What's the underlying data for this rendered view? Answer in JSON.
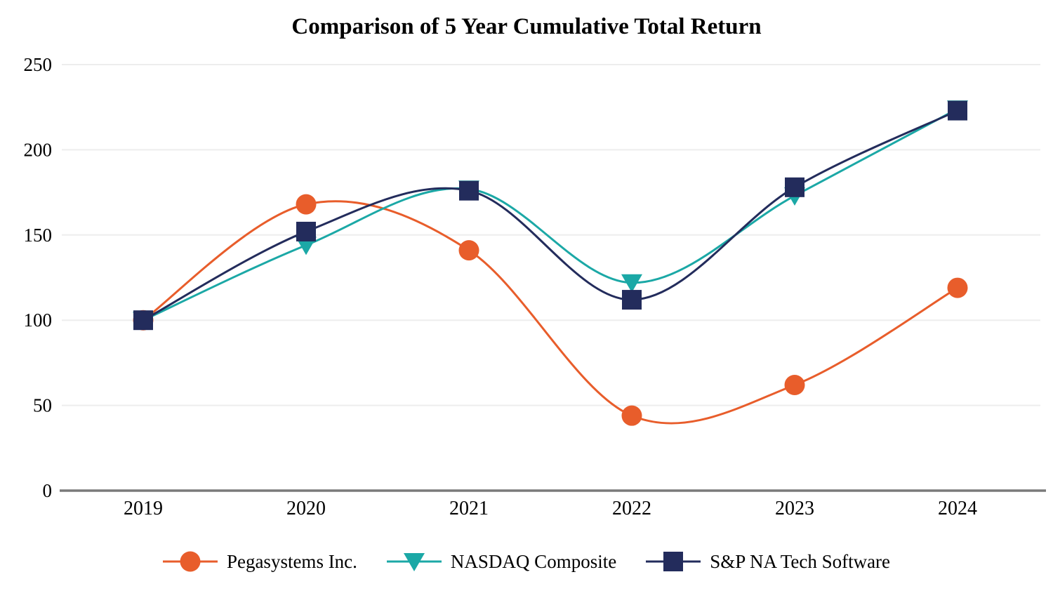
{
  "chart_data": {
    "type": "line",
    "title": "Comparison of 5 Year Cumulative Total Return",
    "categories": [
      "2019",
      "2020",
      "2021",
      "2022",
      "2023",
      "2024"
    ],
    "series": [
      {
        "name": "Pegasystems Inc.",
        "marker": "circle",
        "color": "#E85D2B",
        "values": [
          100,
          168,
          141,
          44,
          62,
          119
        ]
      },
      {
        "name": "NASDAQ Composite",
        "marker": "triangle-down",
        "color": "#1BA8A6",
        "values": [
          100,
          144,
          177,
          122,
          173,
          224
        ]
      },
      {
        "name": "S&P NA Tech Software",
        "marker": "square",
        "color": "#232C5C",
        "values": [
          100,
          152,
          176,
          112,
          178,
          223
        ]
      }
    ],
    "xlabel": "",
    "ylabel": "",
    "ylim": [
      0,
      250
    ],
    "yticks": [
      0,
      50,
      100,
      150,
      200,
      250
    ],
    "grid": "horizontal",
    "gridline_color": "#EDEDED",
    "axis_line_color": "#7A7A7A",
    "text_color": "#000000",
    "legend_position": "bottom",
    "line_style": "smooth"
  }
}
